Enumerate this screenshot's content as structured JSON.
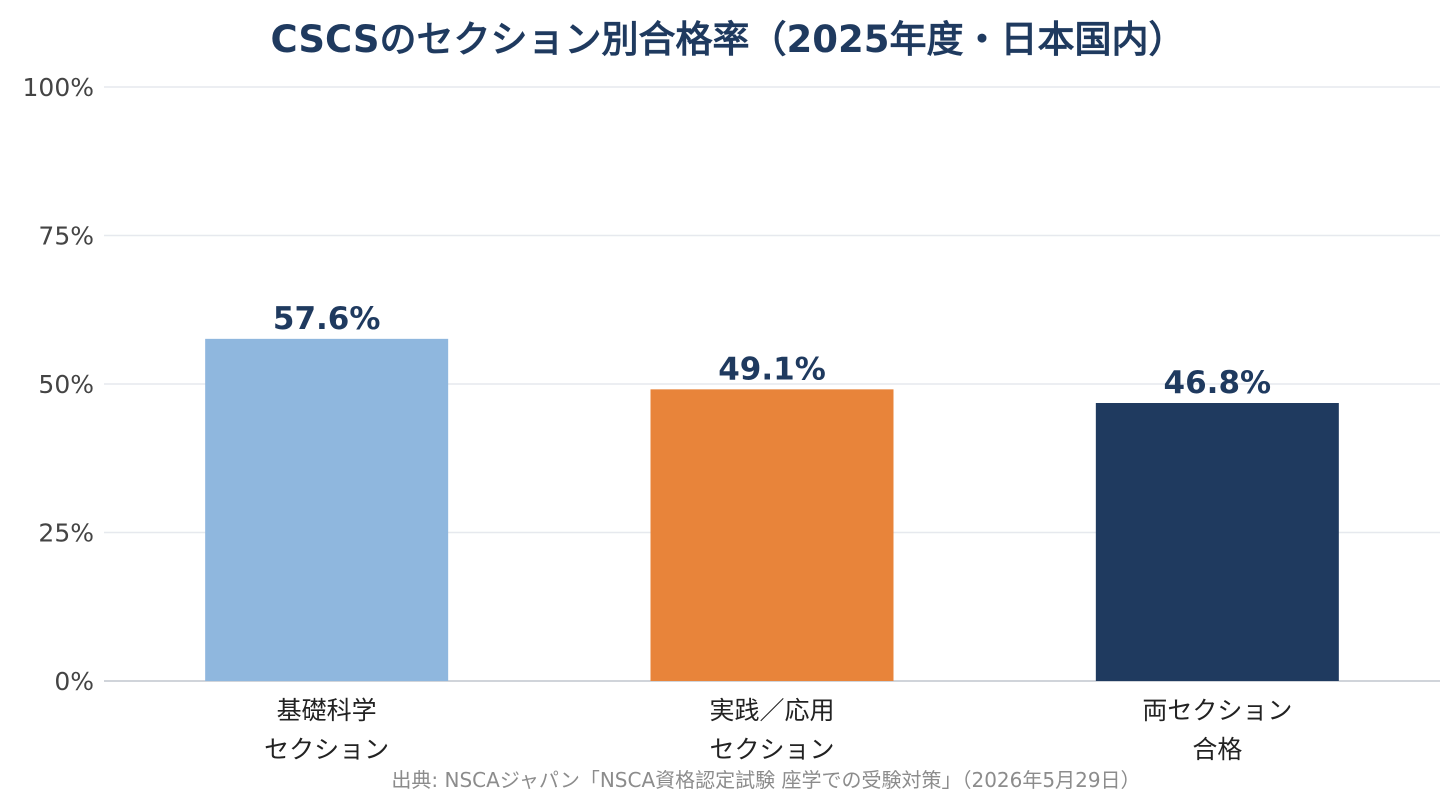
{
  "chart_data": {
    "type": "bar",
    "title": "CSCSのセクション別合格率（2025年度・日本国内）",
    "categories": [
      [
        "基礎科学",
        "セクション"
      ],
      [
        "実践／応用",
        "セクション"
      ],
      [
        "両セクション",
        "合格"
      ]
    ],
    "values": [
      57.6,
      49.1,
      46.8
    ],
    "data_labels": [
      "57.6%",
      "49.1%",
      "46.8%"
    ],
    "ylim": [
      0,
      100
    ],
    "yticks": [
      0,
      25,
      50,
      75,
      100
    ],
    "ytick_labels": [
      "0%",
      "25%",
      "50%",
      "75%",
      "100%"
    ],
    "xlabel": "",
    "ylabel": "",
    "grid": "horizontal",
    "legend": "none",
    "colors": [
      "#8fb7de",
      "#e8843a",
      "#1f3a5f"
    ],
    "title_color": "#1f3a5f",
    "label_color": "#1f3a5f",
    "gridline_color": "#e6e9ee",
    "source": "出典: NSCAジャパン「NSCA資格認定試験 座学での受験対策」（2026年5月29日）"
  }
}
